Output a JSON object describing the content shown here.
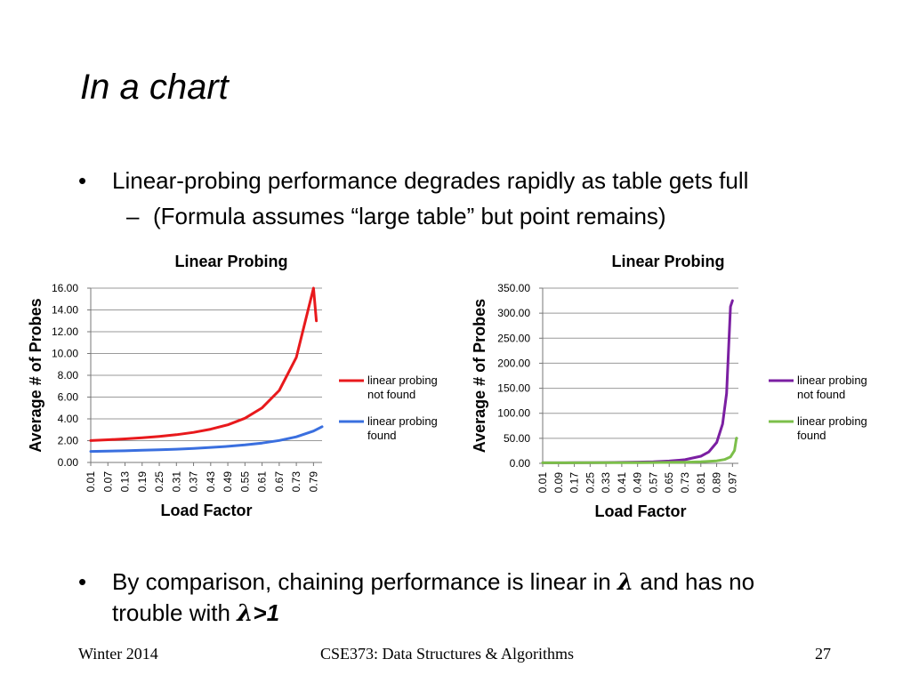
{
  "slide": {
    "title": "In a chart",
    "bullet1": "Linear-probing performance degrades rapidly as table gets full",
    "sub1": "(Formula assumes “large table” but point remains)",
    "bullet2_pre": "By comparison, chaining performance is linear in ",
    "lambda": "λ",
    "bullet2_mid": " and has no trouble with ",
    "bullet2_end": ">1",
    "bullet_symbol": "•",
    "dash_symbol": "–"
  },
  "footer": {
    "left": "Winter 2014",
    "center": "CSE373: Data Structures & Algorithms",
    "page": "27"
  },
  "chart_data": [
    {
      "type": "line",
      "title": "Linear Probing",
      "xlabel": "Load Factor",
      "ylabel": "Average # of Probes",
      "ylim": [
        0,
        16
      ],
      "yticks": [
        "0.00",
        "2.00",
        "4.00",
        "6.00",
        "8.00",
        "10.00",
        "12.00",
        "14.00",
        "16.00"
      ],
      "xticks": [
        "0.01",
        "0.07",
        "0.13",
        "0.19",
        "0.25",
        "0.31",
        "0.37",
        "0.43",
        "0.49",
        "0.55",
        "0.61",
        "0.67",
        "0.73",
        "0.79"
      ],
      "x_range": [
        0.01,
        0.82
      ],
      "grid": true,
      "legend": "right",
      "series": [
        {
          "name": "linear probing not found",
          "color": "#e8191c",
          "x": [
            0.01,
            0.07,
            0.13,
            0.19,
            0.25,
            0.31,
            0.37,
            0.43,
            0.49,
            0.55,
            0.61,
            0.67,
            0.73,
            0.79,
            0.8
          ],
          "values": [
            2.01,
            2.08,
            2.16,
            2.26,
            2.39,
            2.55,
            2.76,
            3.05,
            3.45,
            4.06,
            5.01,
            6.61,
            9.65,
            16.87,
            13.0
          ]
        },
        {
          "name": "linear probing found",
          "color": "#3a6fdf",
          "x": [
            0.01,
            0.07,
            0.13,
            0.19,
            0.25,
            0.31,
            0.37,
            0.43,
            0.49,
            0.55,
            0.61,
            0.67,
            0.73,
            0.79,
            0.82
          ],
          "values": [
            1.01,
            1.04,
            1.07,
            1.12,
            1.17,
            1.22,
            1.29,
            1.38,
            1.48,
            1.61,
            1.78,
            2.02,
            2.35,
            2.88,
            3.28
          ]
        }
      ]
    },
    {
      "type": "line",
      "title": "Linear Probing",
      "xlabel": "Load Factor",
      "ylabel": "Average # of Probes",
      "ylim": [
        0,
        350
      ],
      "yticks": [
        "0.00",
        "50.00",
        "100.00",
        "150.00",
        "200.00",
        "250.00",
        "300.00",
        "350.00"
      ],
      "xticks": [
        "0.01",
        "0.09",
        "0.17",
        "0.25",
        "0.33",
        "0.41",
        "0.49",
        "0.57",
        "0.65",
        "0.73",
        "0.81",
        "0.89",
        "0.97"
      ],
      "x_range": [
        0.01,
        1.0
      ],
      "grid": true,
      "legend": "right",
      "series": [
        {
          "name": "linear probing not found",
          "color": "#7b1fa2",
          "x": [
            0.01,
            0.09,
            0.17,
            0.25,
            0.33,
            0.41,
            0.49,
            0.57,
            0.65,
            0.73,
            0.81,
            0.85,
            0.89,
            0.92,
            0.94,
            0.96,
            0.97
          ],
          "values": [
            1.0,
            1.1,
            1.2,
            1.4,
            1.6,
            1.9,
            2.4,
            3.2,
            4.6,
            7.3,
            14.3,
            22.7,
            41.8,
            78.6,
            139.4,
            313.0,
            325.0
          ]
        },
        {
          "name": "linear probing found",
          "color": "#7cbf4a",
          "x": [
            0.01,
            0.09,
            0.17,
            0.25,
            0.33,
            0.41,
            0.49,
            0.57,
            0.65,
            0.73,
            0.81,
            0.89,
            0.93,
            0.96,
            0.98,
            0.99
          ],
          "values": [
            1.0,
            1.05,
            1.1,
            1.17,
            1.25,
            1.35,
            1.48,
            1.66,
            1.93,
            2.35,
            3.13,
            5.05,
            7.64,
            13.0,
            25.5,
            50.5
          ]
        }
      ]
    }
  ]
}
